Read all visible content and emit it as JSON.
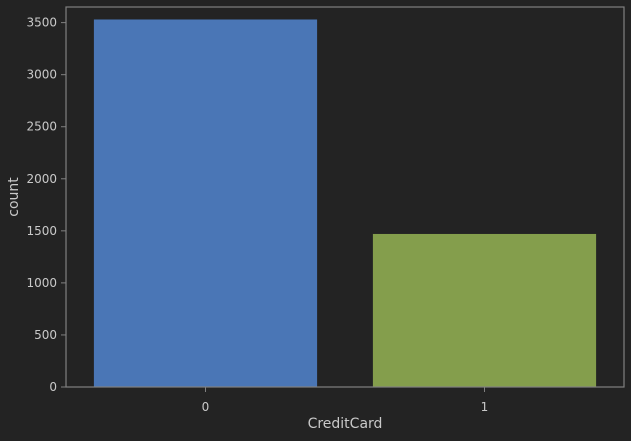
{
  "chart_data": {
    "type": "bar",
    "categories": [
      "0",
      "1"
    ],
    "values": [
      3530,
      1470
    ],
    "xlabel": "CreditCard",
    "ylabel": "count",
    "ylim": [
      0,
      3650
    ],
    "yticks": [
      0,
      500,
      1000,
      1500,
      2000,
      2500,
      3000,
      3500
    ],
    "ytick_labels": [
      "0",
      "500",
      "1000",
      "1500",
      "2000",
      "2500",
      "3000",
      "3500"
    ],
    "grid": false,
    "bar_colors": [
      "#4a76b6",
      "#849e4c"
    ],
    "background_color": "#232323",
    "axes_color": "#808080",
    "text_color": "#c9c9c9"
  }
}
